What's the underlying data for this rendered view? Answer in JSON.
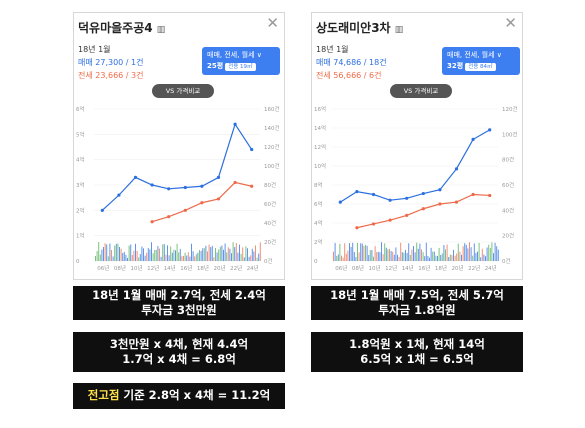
{
  "left_card": {
    "title": "덕유마을주공4",
    "title_icon": "building-icon",
    "date": "18년 1월",
    "sale_line": "매매 27,300 / 1건",
    "jeonse_line": "전세 23,666 / 3건",
    "filter_label": "매매, 전세, 월세 ∨",
    "filter_area": "25평",
    "filter_area_tag": "전용 19㎡",
    "vs_label": "VS 가격비교",
    "y_left_ticks": [
      "6억",
      "5억",
      "4억",
      "3억",
      "2억",
      "1억",
      "0"
    ],
    "y_right_ticks": [
      "160건",
      "140건",
      "120건",
      "100건",
      "80건",
      "60건",
      "40건",
      "20건",
      "0건"
    ],
    "x_ticks": [
      "06년",
      "08년",
      "10년",
      "12년",
      "14년",
      "16년",
      "18년",
      "20년",
      "22년",
      "24년"
    ]
  },
  "right_card": {
    "title": "상도래미안3차",
    "title_icon": "building-icon",
    "date": "18년 1월",
    "sale_line": "매매 74,686 / 18건",
    "jeonse_line": "전세 56,666 / 6건",
    "filter_label": "매매, 전세, 월세 ∨",
    "filter_area": "32평",
    "filter_area_tag": "전용 84㎡",
    "vs_label": "VS 가격비교",
    "y_left_ticks": [
      "16억",
      "14억",
      "12억",
      "10억",
      "8억",
      "6억",
      "4억",
      "2억",
      "0"
    ],
    "y_right_ticks": [
      "120건",
      "100건",
      "80건",
      "60건",
      "40건",
      "20건",
      "0건"
    ],
    "x_ticks": [
      "06년",
      "08년",
      "10년",
      "12년",
      "14년",
      "16년",
      "18년",
      "20년",
      "22년",
      "24년"
    ]
  },
  "boxes": {
    "left_1_line1": "18년 1월 매매 2.7억, 전세 2.4억",
    "left_1_line2": "투자금 3천만원",
    "left_2_line1": "3천만원 x 4채, 현재 4.4억",
    "left_2_line2": "1.7억 x 4채 = 6.8억",
    "left_3_highlight": "전고점",
    "left_3_rest": " 기준 2.8억 x 4채 = 11.2억",
    "right_1_line1": "18년 1월 매매 7.5억, 전세 5.7억",
    "right_1_line2": "투자금 1.8억원",
    "right_2_line1": "1.8억원 x 1채, 현재 14억",
    "right_2_line2": "6.5억 x 1채 = 6.5억"
  },
  "colors": {
    "sale": "#2c6fe0",
    "jeonse": "#ee6b4a",
    "filter_bg": "#3d7ef0",
    "box_bg": "#0f0f0f",
    "highlight": "#ffe14a",
    "volume_green": "#4caf50"
  },
  "chart_data": [
    {
      "type": "line",
      "title": "덕유마을주공4",
      "x": [
        "06년",
        "08년",
        "10년",
        "12년",
        "14년",
        "16년",
        "18년",
        "20년",
        "22년",
        "24년"
      ],
      "ylim": [
        0,
        6
      ],
      "series": [
        {
          "name": "매매",
          "values": [
            2.0,
            2.6,
            3.3,
            3.0,
            2.85,
            2.9,
            2.95,
            3.3,
            5.4,
            4.4
          ]
        },
        {
          "name": "전세",
          "values": [
            null,
            null,
            null,
            1.55,
            1.75,
            2.0,
            2.3,
            2.45,
            3.1,
            2.95
          ]
        }
      ]
    },
    {
      "type": "line",
      "title": "상도래미안3차",
      "x": [
        "06년",
        "08년",
        "10년",
        "12년",
        "14년",
        "16년",
        "18년",
        "20년",
        "22년",
        "24년"
      ],
      "ylim": [
        0,
        16
      ],
      "series": [
        {
          "name": "매매",
          "values": [
            6.2,
            7.3,
            7.0,
            6.4,
            6.6,
            7.1,
            7.5,
            9.7,
            12.8,
            13.8
          ]
        },
        {
          "name": "전세",
          "values": [
            null,
            3.5,
            3.9,
            4.3,
            4.8,
            5.5,
            6.0,
            6.2,
            7.0,
            6.9
          ]
        }
      ]
    }
  ]
}
